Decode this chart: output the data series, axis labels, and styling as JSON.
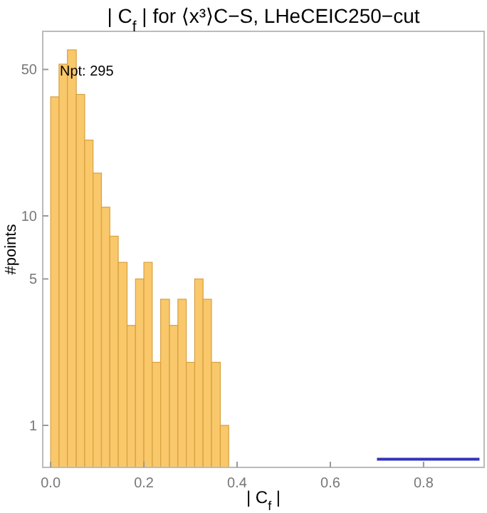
{
  "chart_data": {
    "type": "histogram",
    "title": "| C$_{f}$ | for ⟨x³⟩C−S, LHeCEIC250−cut",
    "xlabel": "| C$_{f}$ |",
    "ylabel": "#points",
    "bins": [
      0,
      0.018,
      0.036,
      0.055,
      0.073,
      0.091,
      0.109,
      0.127,
      0.145,
      0.164,
      0.182,
      0.2,
      0.218,
      0.236,
      0.255,
      0.273,
      0.291,
      0.309,
      0.327,
      0.345,
      0.364,
      0.382
    ],
    "values": [
      37,
      53,
      62,
      38,
      23,
      16,
      11,
      8,
      6,
      3,
      5,
      6,
      2,
      4,
      3,
      4,
      2,
      5,
      4,
      2,
      1
    ],
    "color": "#f9c86b",
    "series": [
      {
        "type": "line",
        "color": "#3333bb",
        "x": [
          0.7,
          0.92
        ],
        "values": [
          0.69,
          0.69
        ]
      }
    ],
    "xlim": [
      -0.017,
      0.93
    ],
    "ylim": [
      0.63,
      76
    ],
    "log": "y",
    "xticks": [
      {
        "value": 0,
        "label": "0.0"
      },
      0.2,
      0.4,
      0.6,
      0.8
    ],
    "yticks": [
      1,
      5,
      10,
      50
    ],
    "grid": false,
    "annotations": [
      "Npt: 295"
    ]
  }
}
